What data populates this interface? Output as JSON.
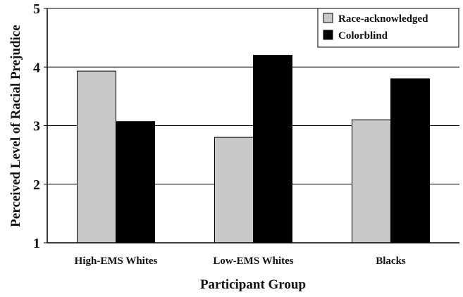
{
  "chart_data": {
    "type": "bar",
    "title": "",
    "xlabel": "Participant Group",
    "ylabel": "Perceived Level of Racial Prejudice",
    "categories": [
      "High-EMS Whites",
      "Low-EMS Whites",
      "Blacks"
    ],
    "series": [
      {
        "name": "Race-acknowledged",
        "values": [
          3.93,
          2.8,
          3.1
        ],
        "color": "#c8c8c8"
      },
      {
        "name": "Colorblind",
        "values": [
          3.07,
          4.2,
          3.8
        ],
        "color": "#000000"
      }
    ],
    "ylim": [
      1,
      5
    ],
    "yticks": [
      "1",
      "2",
      "3",
      "4",
      "5"
    ],
    "grid": true,
    "legend_position": "top-right"
  }
}
